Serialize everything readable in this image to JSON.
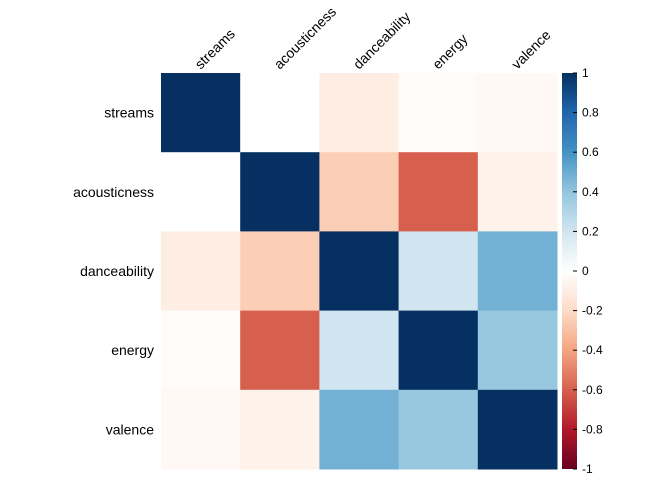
{
  "chart_data": {
    "type": "heatmap",
    "title": "",
    "variables": [
      "streams",
      "acousticness",
      "danceability",
      "energy",
      "valence"
    ],
    "matrix": [
      [
        1.0,
        0.0,
        -0.1,
        -0.02,
        -0.04
      ],
      [
        0.0,
        1.0,
        -0.25,
        -0.6,
        -0.07
      ],
      [
        -0.1,
        -0.25,
        1.0,
        0.2,
        0.48
      ],
      [
        -0.02,
        -0.6,
        0.2,
        1.0,
        0.38
      ],
      [
        -0.04,
        -0.07,
        0.48,
        0.38,
        1.0
      ]
    ],
    "color_scale": {
      "range": [
        -1,
        1
      ],
      "low_color": "#67001F",
      "mid_color": "#FFFFFF",
      "high_color": "#053061"
    },
    "colorbar_ticks": [
      "1",
      "0.8",
      "0.6",
      "0.4",
      "0.2",
      "0",
      "-0.2",
      "-0.4",
      "-0.6",
      "-0.8",
      "-1"
    ],
    "legend_position": "right",
    "column_label_rotation": "45 degrees",
    "grid": false
  }
}
